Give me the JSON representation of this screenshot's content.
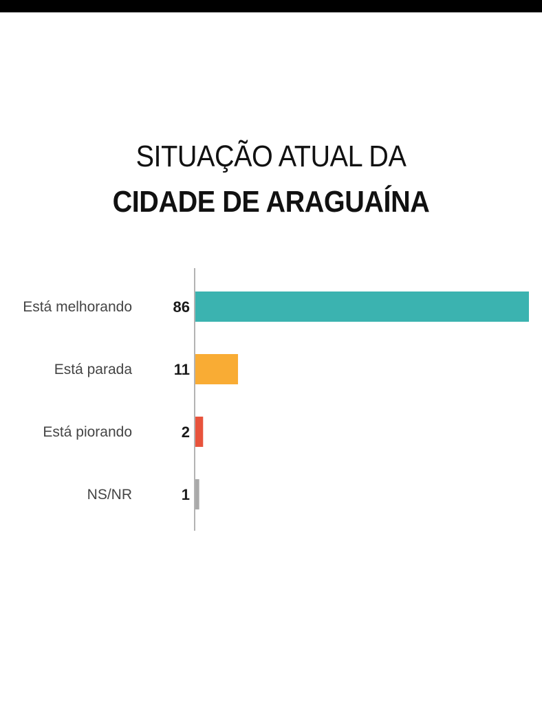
{
  "title": {
    "line1": "SITUAÇÃO ATUAL DA",
    "line2": "CIDADE DE ARAGUAÍNA"
  },
  "chart_data": {
    "type": "bar",
    "orientation": "horizontal",
    "categories": [
      "Está melhorando",
      "Está parada",
      "Está piorando",
      "NS/NR"
    ],
    "values": [
      86,
      11,
      2,
      1
    ],
    "colors": [
      "#3bb3b0",
      "#f9ac34",
      "#e8533c",
      "#a9a9a9"
    ],
    "xlim": [
      0,
      86
    ],
    "grid": false,
    "legend": "none"
  }
}
